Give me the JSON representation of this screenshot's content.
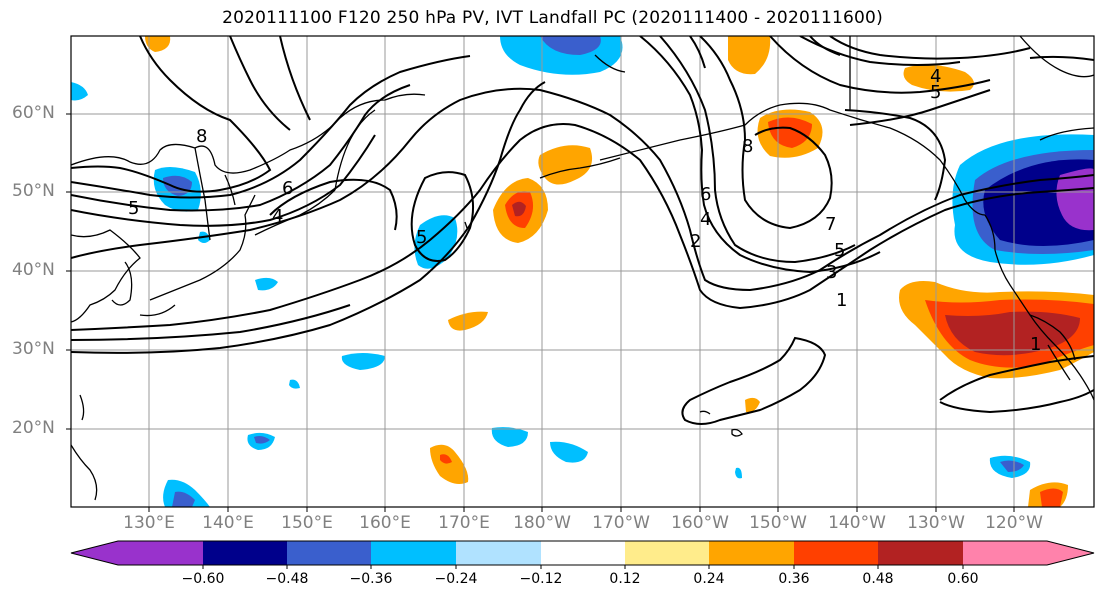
{
  "title": "2020111100 F120 250 hPa PV, IVT Landfall PC (2020111400 - 2020111600)",
  "lat_labels": [
    "60°N",
    "50°N",
    "40°N",
    "30°N",
    "20°N"
  ],
  "lon_labels": [
    "130°E",
    "140°E",
    "150°E",
    "160°E",
    "170°E",
    "180°W",
    "170°W",
    "160°W",
    "150°W",
    "140°W",
    "130°W",
    "120°W"
  ],
  "colorbar": {
    "ticks": [
      "−0.60",
      "−0.48",
      "−0.36",
      "−0.24",
      "−0.12",
      "0.12",
      "0.24",
      "0.36",
      "0.48",
      "0.60"
    ],
    "colors": [
      "#9932cc",
      "#00008b",
      "#3a5fcd",
      "#00bfff",
      "#b0e2ff",
      "#ffffff",
      "#ffec8b",
      "#ffa500",
      "#ff4000",
      "#b22222",
      "#ff82ab"
    ]
  },
  "contour_labels": [
    "8",
    "6",
    "5",
    "4",
    "5",
    "8",
    "7",
    "6",
    "5",
    "4",
    "3",
    "2",
    "1",
    "1",
    "4",
    "5"
  ],
  "colors": {
    "land": "#000000",
    "grid": "#999999",
    "contour": "#000000"
  }
}
